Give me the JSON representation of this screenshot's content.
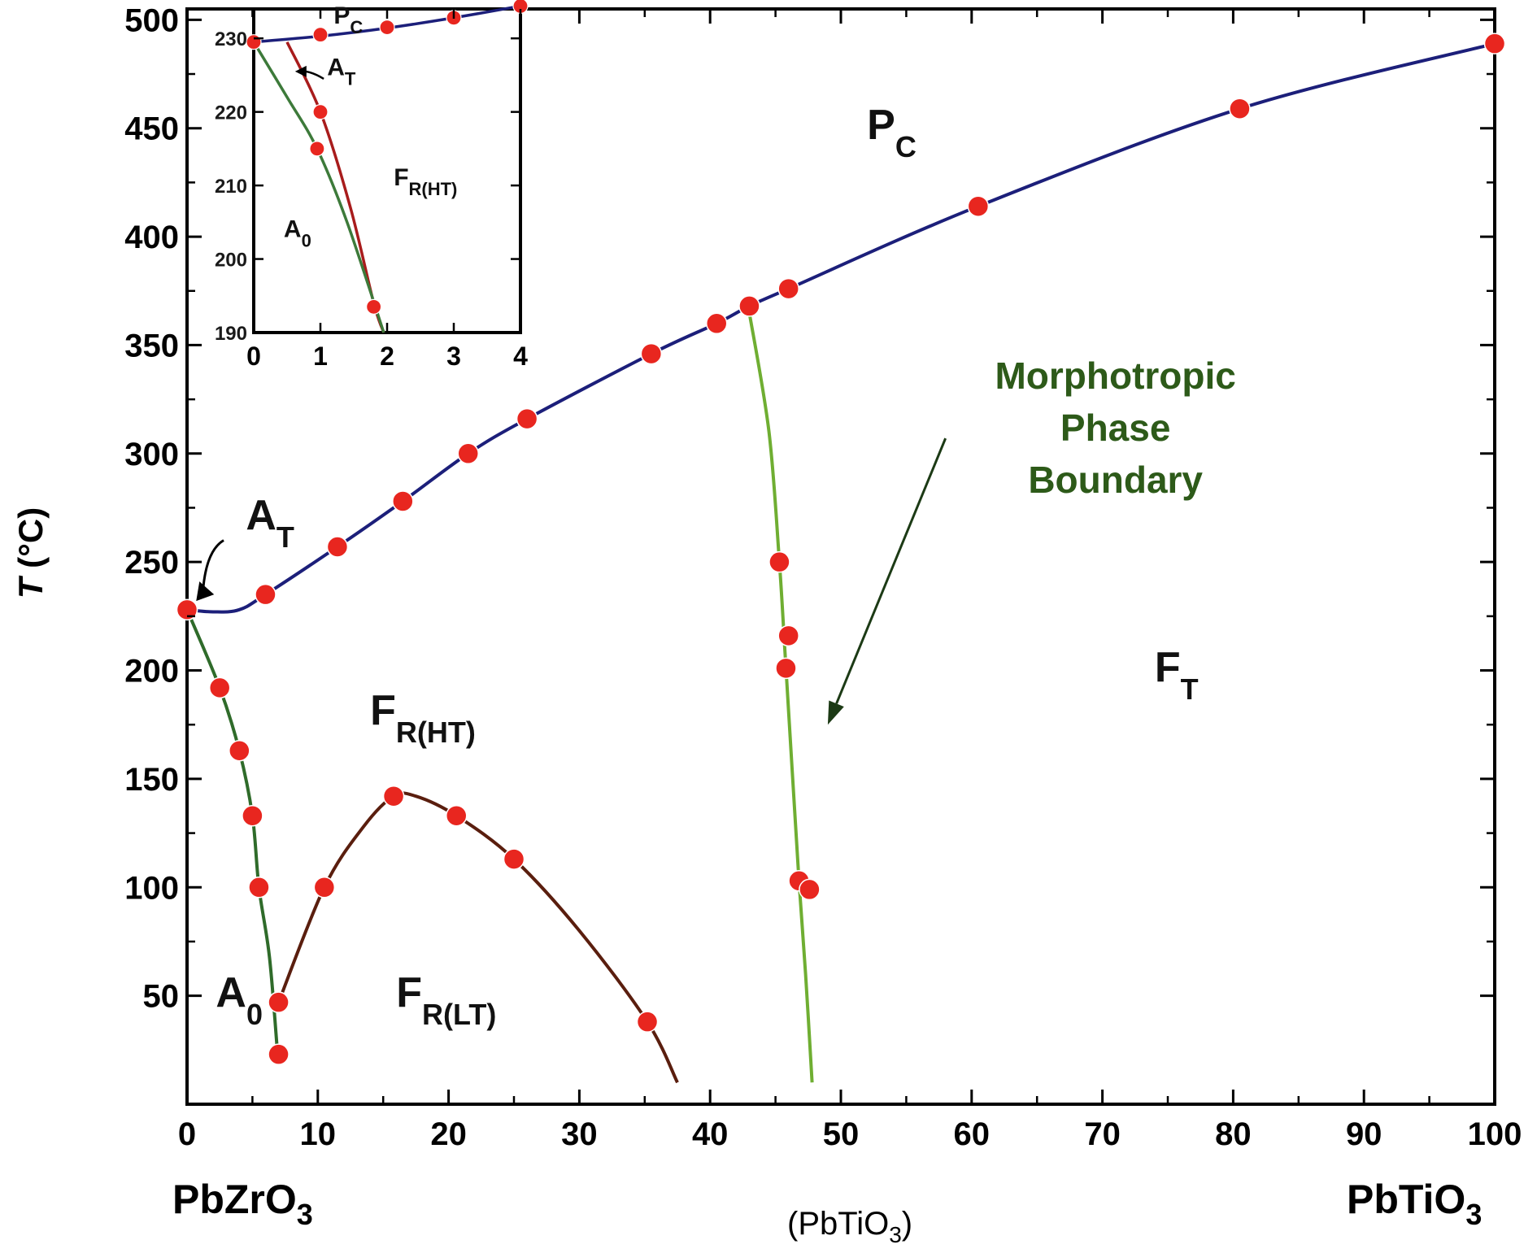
{
  "colors": {
    "pc_line": "#1c1f7a",
    "ao_line": "#2f6b2a",
    "lt_line": "#5a1e0e",
    "mpb_line": "#6fae32",
    "inset_at_line": "#a81c1c",
    "inset_ao_line": "#3d7a3a",
    "marker": "#e8261f",
    "axis": "#000000",
    "region_text": "#111111",
    "region_brown": "#5a1a10",
    "mpb_text": "#2d5a19"
  },
  "chart_data": [
    {
      "type": "line",
      "x_tick_labels": [
        "0",
        "10",
        "20",
        "30",
        "40",
        "50",
        "60",
        "70",
        "80",
        "90",
        "100"
      ],
      "y_tick_labels": [
        "50",
        "100",
        "150",
        "200",
        "250",
        "300",
        "350",
        "400",
        "450",
        "500"
      ],
      "xlim": [
        0,
        100
      ],
      "ylim": [
        0,
        505
      ],
      "xlabel": "(PbTiO3)",
      "xlabel_main": "(PbTiO",
      "xlabel_sub": "3",
      "xlabel_close": ")",
      "ylabel": "T (°C)",
      "ylabel_italic": "T",
      "ylabel_unit": " (°C)",
      "x_end_left": "PbZrO3",
      "x_end_left_main": "PbZrO",
      "x_end_left_sub": "3",
      "x_end_right": "PbTiO3",
      "x_end_right_main": "PbTiO",
      "x_end_right_sub": "3",
      "region_labels": [
        {
          "main": "P",
          "sub": "C",
          "x": 52,
          "y": 445
        },
        {
          "main": "F",
          "sub": "T",
          "x": 74,
          "y": 195
        },
        {
          "main": "F",
          "sub": "R(HT)",
          "x": 14,
          "y": 175
        },
        {
          "main": "F",
          "sub": "R(LT)",
          "x": 16,
          "y": 45
        },
        {
          "main": "A",
          "sub": "0",
          "x": 2.2,
          "y": 45
        },
        {
          "main": "A",
          "sub": "T",
          "x": 4.5,
          "y": 265
        }
      ],
      "annotation": {
        "lines": [
          "Morphotropic",
          "Phase",
          "Boundary"
        ],
        "x": 71,
        "y": 330,
        "arrow_from": [
          58,
          307
        ],
        "arrow_to": [
          49,
          175
        ]
      },
      "series": [
        {
          "curve": "pc",
          "points": [
            [
              0,
              228
            ],
            [
              6,
              235
            ],
            [
              11.5,
              257
            ],
            [
              16.5,
              278
            ],
            [
              21.5,
              300
            ],
            [
              26,
              316
            ],
            [
              35.5,
              346
            ],
            [
              40.5,
              360
            ],
            [
              43,
              368
            ],
            [
              46,
              376
            ],
            [
              60.5,
              414
            ],
            [
              80.5,
              459
            ],
            [
              100,
              489
            ]
          ],
          "line": [
            [
              0,
              228
            ],
            [
              2,
              227
            ],
            [
              4,
              228
            ],
            [
              6,
              235
            ],
            [
              11.5,
              257
            ],
            [
              16.5,
              278
            ],
            [
              21.5,
              300
            ],
            [
              26,
              316
            ],
            [
              35.5,
              346
            ],
            [
              40.5,
              360
            ],
            [
              43,
              368
            ],
            [
              46,
              376
            ],
            [
              60.5,
              414
            ],
            [
              80.5,
              459
            ],
            [
              100,
              489
            ]
          ]
        },
        {
          "curve": "ao",
          "points": [
            [
              0,
              228
            ],
            [
              2.5,
              192
            ],
            [
              4,
              163
            ],
            [
              5,
              133
            ],
            [
              5.5,
              100
            ],
            [
              7,
              47
            ],
            [
              7,
              23
            ]
          ],
          "line": [
            [
              0,
              228
            ],
            [
              2.5,
              192
            ],
            [
              4,
              163
            ],
            [
              5,
              133
            ],
            [
              5.5,
              100
            ],
            [
              6.3,
              68
            ],
            [
              6.9,
              25
            ]
          ]
        },
        {
          "curve": "lt",
          "points": [
            [
              7,
              47
            ],
            [
              10.5,
              100
            ],
            [
              15.8,
              142
            ],
            [
              20.6,
              133
            ],
            [
              25,
              113
            ],
            [
              35.2,
              38
            ]
          ],
          "line": [
            [
              7,
              47
            ],
            [
              10.5,
              100
            ],
            [
              13.5,
              128
            ],
            [
              15.8,
              142
            ],
            [
              17.5,
              142
            ],
            [
              20.6,
              133
            ],
            [
              25,
              113
            ],
            [
              30,
              80
            ],
            [
              35.2,
              38
            ],
            [
              37.5,
              10
            ]
          ]
        },
        {
          "curve": "mpb",
          "points": [
            [
              45.3,
              250
            ],
            [
              46,
              216
            ],
            [
              45.8,
              201
            ],
            [
              46.8,
              103
            ],
            [
              47.6,
              99
            ]
          ],
          "line": [
            [
              43,
              365
            ],
            [
              44.5,
              310
            ],
            [
              45.3,
              250
            ],
            [
              45.8,
              201
            ],
            [
              46.8,
              103
            ],
            [
              47.3,
              60
            ],
            [
              47.8,
              10
            ]
          ]
        }
      ]
    },
    {
      "type": "line",
      "inset": true,
      "x_tick_labels": [
        "0",
        "1",
        "2",
        "3",
        "4"
      ],
      "y_tick_labels": [
        "190",
        "200",
        "210",
        "220",
        "230"
      ],
      "xlim": [
        0,
        4
      ],
      "ylim": [
        190,
        234
      ],
      "region_labels": [
        {
          "main": "P",
          "sub": "C",
          "x": 1.2,
          "y": 232
        },
        {
          "main": "A",
          "sub": "T",
          "x": 1.1,
          "y": 225
        },
        {
          "main": "F",
          "sub": "R(HT)",
          "x": 2.1,
          "y": 210
        },
        {
          "main": "A",
          "sub": "0",
          "x": 0.45,
          "y": 203
        }
      ],
      "series": [
        {
          "curve": "inset_pc",
          "points": [
            [
              0,
              229.5
            ],
            [
              1,
              230.5
            ],
            [
              2,
              231.5
            ],
            [
              3,
              232.8
            ],
            [
              4,
              234.4
            ]
          ],
          "line": [
            [
              0,
              229.5
            ],
            [
              1,
              230.3
            ],
            [
              2,
              231.4
            ],
            [
              3,
              232.8
            ],
            [
              4,
              234.4
            ]
          ]
        },
        {
          "curve": "inset_at",
          "points": [
            [
              1,
              220
            ],
            [
              1.8,
              193.5
            ]
          ],
          "line": [
            [
              0.5,
              229.5
            ],
            [
              1,
              220
            ],
            [
              1.45,
              207
            ],
            [
              1.8,
              194
            ],
            [
              1.95,
              190
            ]
          ]
        },
        {
          "curve": "inset_ao",
          "points": [
            [
              0.95,
              215
            ]
          ],
          "line": [
            [
              0,
              229.5
            ],
            [
              0.5,
              222
            ],
            [
              0.95,
              215
            ],
            [
              1.4,
              205
            ],
            [
              1.95,
              190
            ]
          ]
        }
      ]
    }
  ]
}
